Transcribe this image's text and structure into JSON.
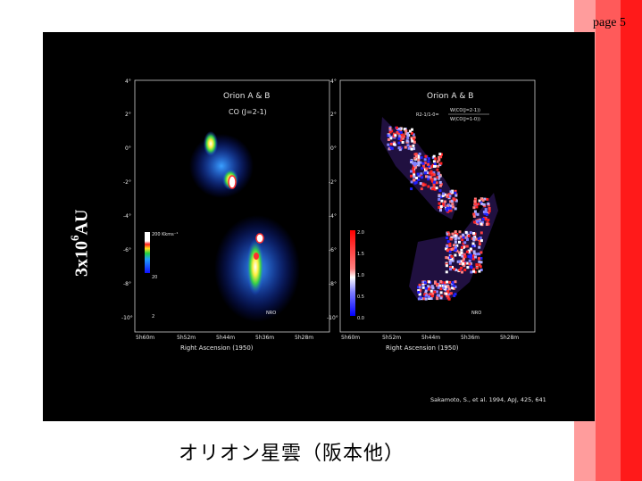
{
  "page": {
    "number_label": "page 5"
  },
  "slide": {
    "caption": "オリオン星雲（阪本他）",
    "scale_label_main": "3x10",
    "scale_label_exp": "6",
    "scale_label_unit": "AU",
    "citation": "Sakamoto, S., et al. 1994, ApJ, 425, 641"
  },
  "left_panel": {
    "title": "Orion A & B",
    "subtitle": "CO (J=2-1)",
    "xlabel": "Right Ascension (1950)",
    "x_ticks": [
      "5h60m",
      "5h52m",
      "5h44m",
      "5h36m",
      "5h28m"
    ],
    "y_ticks": [
      "4°",
      "2°",
      "0°",
      "-2°",
      "-4°",
      "-6°",
      "-8°",
      "-10°"
    ],
    "colorbar_labels": [
      "200 Kkms⁻¹",
      "20",
      "2"
    ],
    "instrument": "NRO"
  },
  "right_panel": {
    "title": "Orion A & B",
    "ratio_lhs": "R2-1/1-0=",
    "ratio_num": "W(CO(J=2-1))",
    "ratio_den": "W(CO(J=1-0))",
    "xlabel": "Right Ascension (1950)",
    "x_ticks": [
      "5h60m",
      "5h52m",
      "5h44m",
      "5h36m",
      "5h28m"
    ],
    "y_ticks": [
      "4°",
      "2°",
      "0°",
      "-2°",
      "-4°",
      "-6°",
      "-8°",
      "-10°"
    ],
    "colorbar_labels": [
      "2.0",
      "1.5",
      "1.0",
      "0.5",
      "0.0"
    ],
    "instrument": "NRO"
  },
  "colors": {
    "stripe_light": "#ff9c9c",
    "stripe_mid": "#ff5a5a",
    "stripe_dark": "#ff1a1a",
    "figure_bg": "#000000"
  }
}
